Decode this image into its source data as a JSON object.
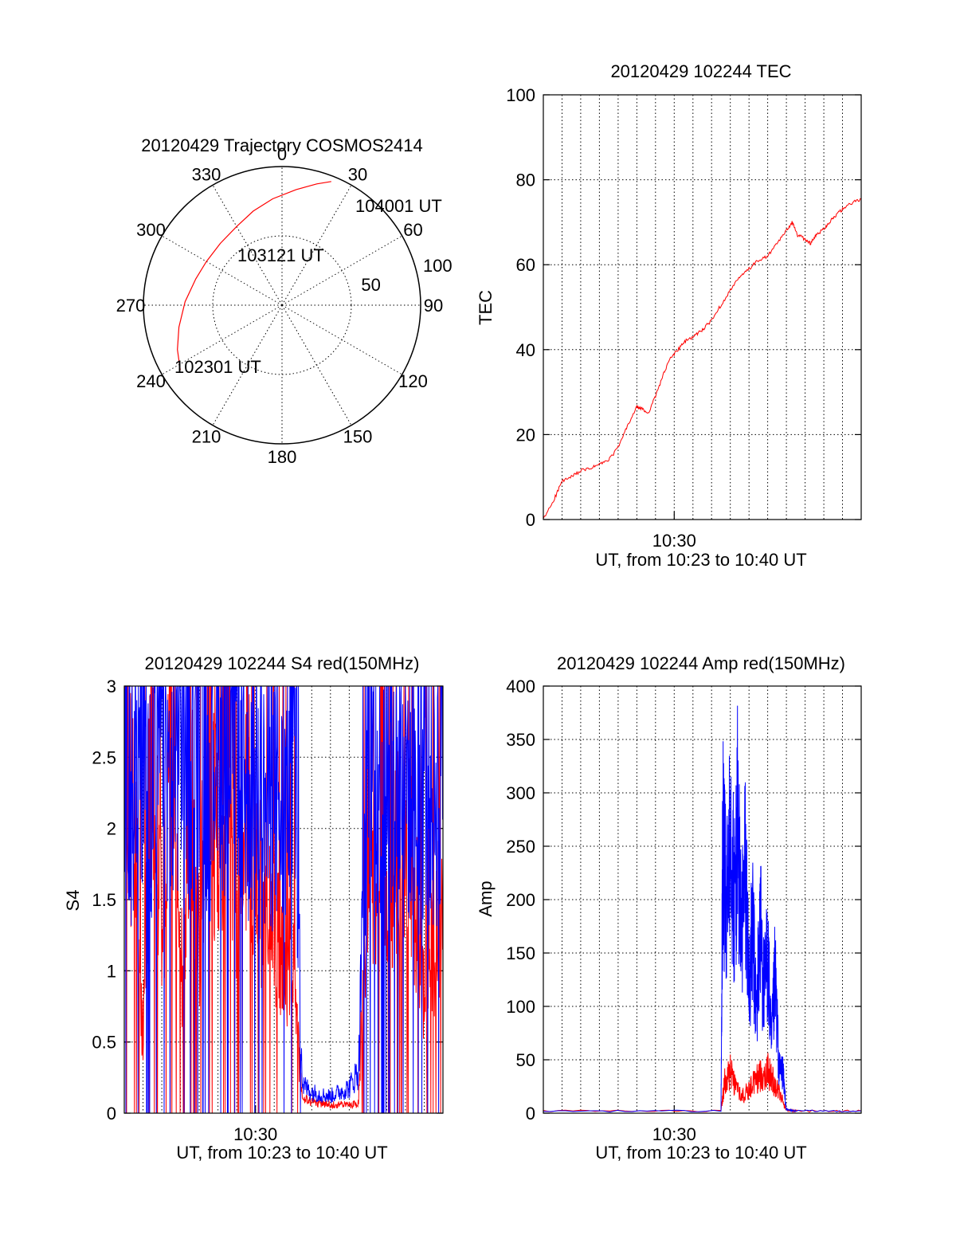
{
  "colors": {
    "red": "#ff0000",
    "blue": "#0000ff",
    "axis": "#000000"
  },
  "chart_data": [
    {
      "type": "scatter",
      "subtype": "polar-trajectory",
      "title": "20120429 Trajectory COSMOS2414",
      "azimuth_labels": [
        "0",
        "30",
        "60",
        "90",
        "120",
        "150",
        "180",
        "210",
        "240",
        "270",
        "300",
        "330"
      ],
      "radius_labels": [
        "50",
        "100"
      ],
      "series": [
        {
          "color": "#ff0000",
          "points": [
            {
              "az": 237.5,
              "zenith": 87
            },
            {
              "az": 247,
              "zenith": 82
            },
            {
              "az": 258,
              "zenith": 76
            },
            {
              "az": 272,
              "zenith": 70
            },
            {
              "az": 287,
              "zenith": 65
            },
            {
              "az": 300,
              "zenith": 63
            },
            {
              "az": 315,
              "zenith": 63
            },
            {
              "az": 330,
              "zenith": 65.5
            },
            {
              "az": 343,
              "zenith": 71
            },
            {
              "az": 355,
              "zenith": 77
            },
            {
              "az": 7,
              "zenith": 84
            },
            {
              "az": 16,
              "zenith": 91
            },
            {
              "az": 21.7,
              "zenith": 96
            }
          ]
        }
      ],
      "annotations": [
        "104001 UT",
        "103121 UT",
        "102301 UT"
      ]
    },
    {
      "type": "line",
      "title": "20120429 102244 TEC",
      "xlabel": "UT, from 10:23 to 10:40 UT",
      "ylabel": "TEC",
      "x_range_min": [
        0,
        17
      ],
      "x_tick_labels": [
        {
          "x": 7,
          "label": "10:30"
        }
      ],
      "ylim": [
        0,
        100
      ],
      "y_ticks": [
        0,
        20,
        40,
        60,
        80,
        100
      ],
      "grid": true,
      "series": [
        {
          "color": "#ff0000",
          "x": [
            0,
            0.6,
            1,
            1.5,
            2,
            2.5,
            3,
            3.5,
            4,
            4.5,
            5,
            5.3,
            5.6,
            6,
            6.4,
            6.8,
            7.2,
            7.6,
            8,
            8.3,
            8.6,
            9,
            9.5,
            10,
            10.5,
            11,
            11.5,
            12,
            12.5,
            13,
            13.3,
            13.6,
            14,
            14.3,
            14.6,
            15,
            15.3,
            15.6,
            16,
            16.5,
            17
          ],
          "values": [
            0,
            5,
            9,
            10,
            11.5,
            12,
            13,
            14,
            17,
            22,
            26.5,
            26,
            25,
            29,
            34,
            38,
            40,
            42,
            43,
            44,
            45,
            47,
            50.5,
            54,
            57,
            59,
            61,
            62,
            65,
            68,
            70,
            67,
            66,
            65,
            67,
            68.5,
            70,
            71.5,
            73,
            74.5,
            75.5
          ]
        }
      ]
    },
    {
      "type": "line",
      "title": "20120429 102244 S4 red(150MHz)",
      "xlabel": "UT, from 10:23 to 10:40 UT",
      "ylabel": "S4",
      "x_range_min": [
        0,
        17
      ],
      "x_tick_labels": [
        {
          "x": 7,
          "label": "10:30"
        }
      ],
      "ylim": [
        0,
        3
      ],
      "y_ticks": [
        0,
        0.5,
        1,
        1.5,
        2,
        2.5,
        3
      ],
      "grid": true,
      "series": [
        {
          "name": "red",
          "color": "#ff0000",
          "x": [
            0,
            0.5,
            1,
            1.5,
            2,
            2.5,
            3,
            3.5,
            4,
            4.5,
            5,
            5.5,
            6,
            6.5,
            7,
            7.5,
            8,
            8.5,
            9,
            9.5,
            10,
            10.5,
            11,
            11.5,
            12,
            12.5,
            13,
            13.5,
            14,
            14.5,
            15,
            15.5,
            16,
            16.5,
            17
          ],
          "values": [
            3,
            2.1,
            0.5,
            3,
            1.2,
            3,
            0.8,
            2.6,
            1.1,
            2.9,
            1.6,
            3,
            1.1,
            2.3,
            1.5,
            1.6,
            1.3,
            1.1,
            1.0,
            0.1,
            0.08,
            0.07,
            0.06,
            0.06,
            0.06,
            0.07,
            2.0,
            1.5,
            1.2,
            1.8,
            1.9,
            1.5,
            0.8,
            1.2,
            1.5
          ]
        },
        {
          "name": "blue",
          "color": "#0000ff",
          "x": [
            0,
            0.5,
            1,
            1.5,
            2,
            2.5,
            3,
            3.5,
            4,
            4.5,
            5,
            5.5,
            6,
            6.5,
            7,
            7.5,
            8,
            8.5,
            9,
            9.5,
            10,
            10.5,
            11,
            11.5,
            12,
            12.5,
            13,
            13.5,
            14,
            14.5,
            15,
            15.5,
            16,
            16.5,
            17
          ],
          "values": [
            3,
            2.0,
            3,
            2.2,
            3,
            2.1,
            3,
            2.4,
            3,
            2.3,
            3,
            2.6,
            3,
            2.2,
            2.5,
            2.1,
            2.3,
            2.0,
            3,
            0.2,
            0.15,
            0.13,
            0.12,
            0.15,
            0.18,
            0.3,
            2.8,
            2.3,
            2.6,
            2.2,
            2.5,
            2.0,
            2.4,
            2.2,
            2.5
          ]
        }
      ]
    },
    {
      "type": "line",
      "title": "20120429 102244 Amp red(150MHz)",
      "xlabel": "UT, from 10:23 to 10:40 UT",
      "ylabel": "Amp",
      "x_range_min": [
        0,
        17
      ],
      "x_tick_labels": [
        {
          "x": 7,
          "label": "10:30"
        }
      ],
      "ylim": [
        0,
        400
      ],
      "y_ticks": [
        0,
        50,
        100,
        150,
        200,
        250,
        300,
        350,
        400
      ],
      "grid": true,
      "series": [
        {
          "name": "red",
          "color": "#ff0000",
          "x": [
            0,
            9.5,
            9.7,
            10,
            10.3,
            10.6,
            11,
            11.3,
            11.6,
            12,
            12.3,
            12.6,
            13,
            13.5,
            17
          ],
          "values": [
            2,
            2,
            30,
            38,
            25,
            15,
            22,
            30,
            35,
            40,
            30,
            20,
            3,
            2,
            2
          ]
        },
        {
          "name": "blue",
          "color": "#0000ff",
          "x": [
            0,
            9.5,
            9.6,
            9.8,
            10,
            10.2,
            10.4,
            10.6,
            10.8,
            11,
            11.2,
            11.4,
            11.6,
            11.8,
            12,
            12.2,
            12.4,
            12.6,
            12.8,
            13,
            13.5,
            17
          ],
          "values": [
            2,
            2,
            250,
            180,
            300,
            190,
            270,
            160,
            230,
            120,
            170,
            90,
            180,
            110,
            150,
            60,
            130,
            40,
            40,
            3,
            2,
            2
          ]
        }
      ]
    }
  ]
}
